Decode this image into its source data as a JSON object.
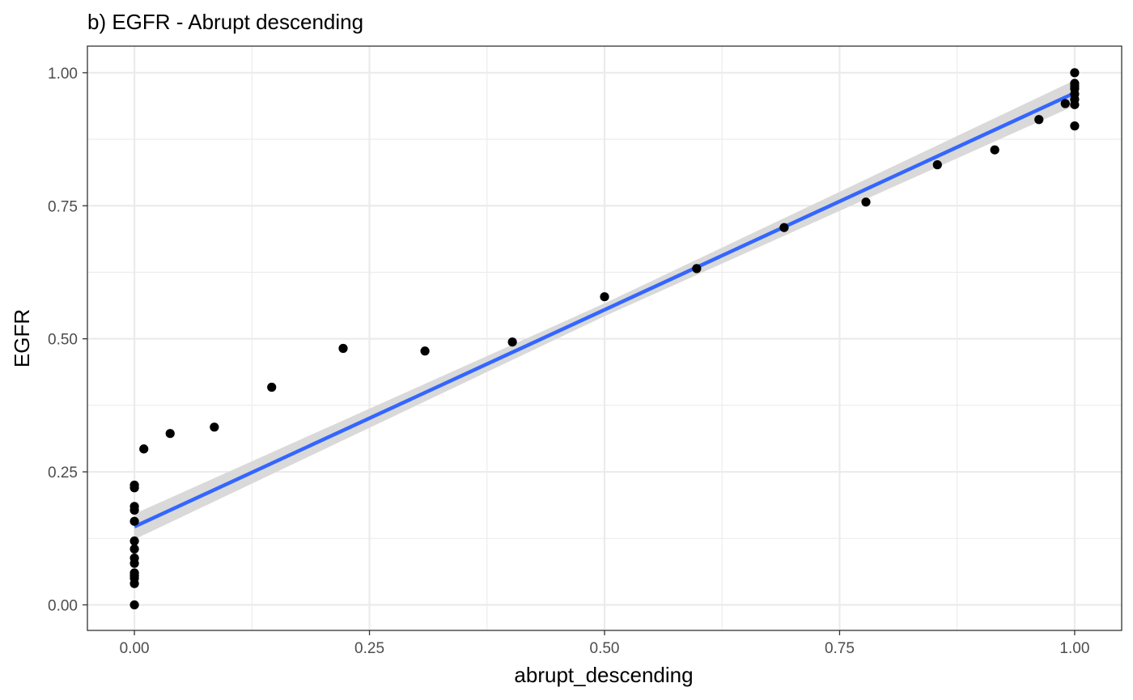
{
  "chart_data": {
    "type": "scatter",
    "title": "b) EGFR - Abrupt descending",
    "xlabel": "abrupt_descending",
    "ylabel": "EGFR",
    "xlim": [
      -0.05,
      1.05
    ],
    "ylim": [
      -0.048,
      1.05
    ],
    "x_ticks": [
      0,
      0.25,
      0.5,
      0.75,
      1
    ],
    "x_tick_labels": [
      "0.00",
      "0.25",
      "0.50",
      "0.75",
      "1.00"
    ],
    "y_ticks": [
      0,
      0.25,
      0.5,
      0.75,
      1
    ],
    "y_tick_labels": [
      "0.00",
      "0.25",
      "0.50",
      "0.75",
      "1.00"
    ],
    "x_minor": [
      0.125,
      0.375,
      0.625,
      0.875
    ],
    "y_minor": [
      0.125,
      0.375,
      0.625,
      0.875
    ],
    "grid": true,
    "points": [
      {
        "x": 0.0,
        "y": 0.0
      },
      {
        "x": 0.0,
        "y": 0.04
      },
      {
        "x": 0.0,
        "y": 0.05
      },
      {
        "x": 0.0,
        "y": 0.055
      },
      {
        "x": 0.0,
        "y": 0.06
      },
      {
        "x": 0.0,
        "y": 0.078
      },
      {
        "x": 0.0,
        "y": 0.088
      },
      {
        "x": 0.0,
        "y": 0.105
      },
      {
        "x": 0.0,
        "y": 0.12
      },
      {
        "x": 0.0,
        "y": 0.157
      },
      {
        "x": 0.0,
        "y": 0.178
      },
      {
        "x": 0.0,
        "y": 0.185
      },
      {
        "x": 0.0,
        "y": 0.22
      },
      {
        "x": 0.0,
        "y": 0.225
      },
      {
        "x": 0.01,
        "y": 0.293
      },
      {
        "x": 0.038,
        "y": 0.322
      },
      {
        "x": 0.085,
        "y": 0.334
      },
      {
        "x": 0.146,
        "y": 0.409
      },
      {
        "x": 0.222,
        "y": 0.482
      },
      {
        "x": 0.309,
        "y": 0.477
      },
      {
        "x": 0.402,
        "y": 0.494
      },
      {
        "x": 0.5,
        "y": 0.579
      },
      {
        "x": 0.598,
        "y": 0.632
      },
      {
        "x": 0.691,
        "y": 0.709
      },
      {
        "x": 0.778,
        "y": 0.757
      },
      {
        "x": 0.854,
        "y": 0.827
      },
      {
        "x": 0.915,
        "y": 0.855
      },
      {
        "x": 0.962,
        "y": 0.912
      },
      {
        "x": 0.99,
        "y": 0.942
      },
      {
        "x": 1.0,
        "y": 0.9
      },
      {
        "x": 1.0,
        "y": 0.94
      },
      {
        "x": 1.0,
        "y": 0.95
      },
      {
        "x": 1.0,
        "y": 0.96
      },
      {
        "x": 1.0,
        "y": 0.97
      },
      {
        "x": 1.0,
        "y": 0.975
      },
      {
        "x": 1.0,
        "y": 0.98
      },
      {
        "x": 1.0,
        "y": 1.0
      }
    ],
    "fit_line": {
      "x": [
        0,
        1
      ],
      "y": [
        0.147,
        0.962
      ],
      "color": "#3366FF"
    },
    "confidence_band": {
      "x": [
        0,
        0.5,
        1
      ],
      "half_width": [
        0.024,
        0.012,
        0.024
      ],
      "color": "#D9D9D9"
    },
    "point_color": "#000000",
    "panel_border_color": "#333333",
    "grid_color": "#EBEBEB"
  }
}
